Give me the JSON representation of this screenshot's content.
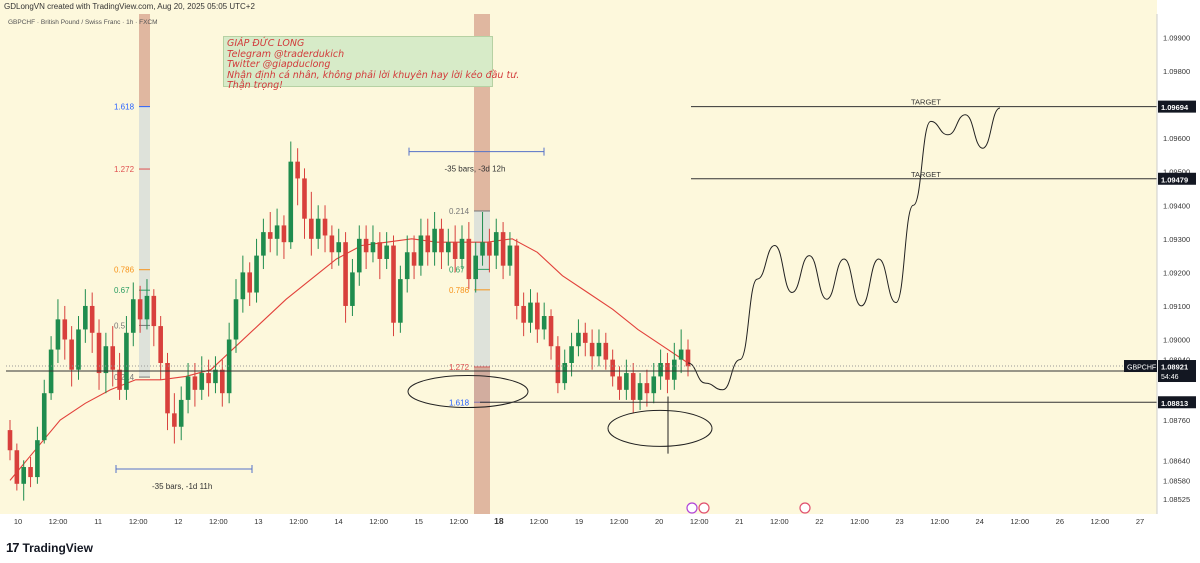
{
  "header": {
    "text": "GDLongVN created with TradingView.com, Aug 20, 2025 05:05 UTC+2"
  },
  "symbol_label": "GBPCHF · British Pound / Swiss Franc · 1h · FXCM",
  "note": {
    "lines": [
      "GIÁP ĐỨC LONG",
      "Telegram @traderdukich",
      "Twitter @giapduclong",
      "Nhận định cá nhân, không phải lời khuyên hay lời kéo đầu tư.",
      "Thận trọng!"
    ]
  },
  "footer": {
    "brand": "TradingView",
    "mark": "17"
  },
  "colors": {
    "background": "#fdf8dc",
    "up": "#1f8c4e",
    "down": "#d8403c",
    "ma": "#e2413b",
    "drawing": "#222222",
    "label_bg": "#131722",
    "fib_blue": "#2962ff",
    "fib_red": "#e05050",
    "fib_orange": "#f7931a",
    "fib_green": "#2a9d62"
  },
  "icons": {
    "event_1": "lightning-icon",
    "event_2": "flag-icon",
    "event_3": "flag-icon"
  },
  "chart_data": {
    "type": "candlestick",
    "title": "GBPCHF · British Pound / Swiss Franc · 1h · FXCM",
    "ylim": [
      1.0848,
      1.0997
    ],
    "y_ticks": [
      "1.09900",
      "1.09800",
      "1.09600",
      "1.09500",
      "1.09400",
      "1.09300",
      "1.09200",
      "1.09100",
      "1.09000",
      "1.08940",
      "1.08760",
      "1.08640",
      "1.08580",
      "1.08525"
    ],
    "x_ticks": [
      "10",
      "12:00",
      "11",
      "12:00",
      "12",
      "12:00",
      "13",
      "12:00",
      "14",
      "12:00",
      "15",
      "12:00",
      "18",
      "12:00",
      "19",
      "12:00",
      "20",
      "12:00",
      "21",
      "12:00",
      "22",
      "12:00",
      "23",
      "12:00",
      "24",
      "12:00",
      "26",
      "12:00",
      "27"
    ],
    "x_tick_bold": "18",
    "price_labels": [
      {
        "text": "1.09694",
        "value": 1.09694
      },
      {
        "text": "1.09479",
        "value": 1.09479
      },
      {
        "text": "1.08906",
        "value": 1.08906
      },
      {
        "text": "1.08813",
        "value": 1.08813
      }
    ],
    "current": {
      "symbol": "GBPCHF",
      "price": "1.08921",
      "countdown": "54:46",
      "value": 1.08921
    },
    "levels": [
      {
        "label": "TARGET",
        "value": 1.09694
      },
      {
        "label": "TARGET",
        "value": 1.09479
      },
      {
        "label": "",
        "value": 1.08813
      }
    ],
    "moving_average": [
      1.0858,
      1.0867,
      1.0876,
      1.0881,
      1.0885,
      1.0888,
      1.0888,
      1.0889,
      1.0891,
      1.0898,
      1.0905,
      1.0912,
      1.0918,
      1.0924,
      1.0928,
      1.0929,
      1.093,
      1.0929,
      1.0929,
      1.0929,
      1.093,
      1.0926,
      1.0919,
      1.0914,
      1.0909,
      1.0903,
      1.0898,
      1.0893
    ],
    "candles": [
      [
        1.0873,
        1.0867,
        1.0876,
        1.0864
      ],
      [
        1.0867,
        1.0857,
        1.0869,
        1.0855
      ],
      [
        1.0857,
        1.0862,
        1.0864,
        1.0852
      ],
      [
        1.0862,
        1.0859,
        1.0865,
        1.0856
      ],
      [
        1.0859,
        1.087,
        1.0874,
        1.0857
      ],
      [
        1.087,
        1.0884,
        1.0888,
        1.0869
      ],
      [
        1.0884,
        1.0897,
        1.0901,
        1.0882
      ],
      [
        1.0897,
        1.0906,
        1.0912,
        1.0893
      ],
      [
        1.0906,
        1.09,
        1.091,
        1.0894
      ],
      [
        1.09,
        1.0891,
        1.0904,
        1.0886
      ],
      [
        1.0891,
        1.0903,
        1.0907,
        1.0888
      ],
      [
        1.0903,
        1.091,
        1.0915,
        1.0899
      ],
      [
        1.091,
        1.0902,
        1.0914,
        1.0896
      ],
      [
        1.0902,
        1.089,
        1.0906,
        1.0885
      ],
      [
        1.089,
        1.0898,
        1.0902,
        1.0884
      ],
      [
        1.0898,
        1.0891,
        1.0904,
        1.0886
      ],
      [
        1.0891,
        1.0885,
        1.0896,
        1.0882
      ],
      [
        1.0885,
        1.0902,
        1.0907,
        1.0882
      ],
      [
        1.0902,
        1.0912,
        1.0917,
        1.0898
      ],
      [
        1.0912,
        1.0906,
        1.0916,
        1.0902
      ],
      [
        1.0906,
        1.0913,
        1.0918,
        1.0903
      ],
      [
        1.0913,
        1.0904,
        1.0915,
        1.0898
      ],
      [
        1.0904,
        1.0893,
        1.0907,
        1.0888
      ],
      [
        1.0893,
        1.0878,
        1.0896,
        1.0873
      ],
      [
        1.0878,
        1.0874,
        1.0884,
        1.0869
      ],
      [
        1.0874,
        1.0882,
        1.0886,
        1.087
      ],
      [
        1.0882,
        1.0889,
        1.0893,
        1.0878
      ],
      [
        1.0889,
        1.0885,
        1.0893,
        1.088
      ],
      [
        1.0885,
        1.089,
        1.0895,
        1.0882
      ],
      [
        1.089,
        1.0887,
        1.0894,
        1.0883
      ],
      [
        1.0887,
        1.0891,
        1.0895,
        1.0884
      ],
      [
        1.0891,
        1.0884,
        1.0894,
        1.088
      ],
      [
        1.0884,
        1.09,
        1.0905,
        1.0881
      ],
      [
        1.09,
        1.0912,
        1.0918,
        1.0896
      ],
      [
        1.0912,
        1.092,
        1.0925,
        1.0908
      ],
      [
        1.092,
        1.0914,
        1.0923,
        1.091
      ],
      [
        1.0914,
        1.0925,
        1.093,
        1.0911
      ],
      [
        1.0925,
        1.0932,
        1.0936,
        1.0921
      ],
      [
        1.0932,
        1.093,
        1.0938,
        1.0926
      ],
      [
        1.093,
        1.0934,
        1.0939,
        1.0925
      ],
      [
        1.0934,
        1.0929,
        1.0937,
        1.0924
      ],
      [
        1.0929,
        1.0953,
        1.0959,
        1.0927
      ],
      [
        1.0953,
        1.0948,
        1.0957,
        1.094
      ],
      [
        1.0948,
        1.0936,
        1.0951,
        1.093
      ],
      [
        1.0936,
        1.093,
        1.0944,
        1.0925
      ],
      [
        1.093,
        1.0936,
        1.094,
        1.0927
      ],
      [
        1.0936,
        1.0931,
        1.094,
        1.0926
      ],
      [
        1.0931,
        1.0926,
        1.0934,
        1.0921
      ],
      [
        1.0926,
        1.0929,
        1.0933,
        1.0922
      ],
      [
        1.0929,
        1.091,
        1.0932,
        1.0905
      ],
      [
        1.091,
        1.092,
        1.0924,
        1.0907
      ],
      [
        1.092,
        1.093,
        1.0934,
        1.0916
      ],
      [
        1.093,
        1.0926,
        1.0934,
        1.0921
      ],
      [
        1.0926,
        1.0929,
        1.0934,
        1.0923
      ],
      [
        1.0929,
        1.0924,
        1.0932,
        1.0918
      ],
      [
        1.0924,
        1.0928,
        1.0932,
        1.0921
      ],
      [
        1.0928,
        1.0905,
        1.0931,
        1.0901
      ],
      [
        1.0905,
        1.0918,
        1.0922,
        1.0902
      ],
      [
        1.0918,
        1.0926,
        1.0931,
        1.0914
      ],
      [
        1.0926,
        1.0922,
        1.0931,
        1.0918
      ],
      [
        1.0922,
        1.0931,
        1.0936,
        1.0919
      ],
      [
        1.0931,
        1.0926,
        1.0936,
        1.0922
      ],
      [
        1.0926,
        1.0933,
        1.0938,
        1.0922
      ],
      [
        1.0933,
        1.0926,
        1.0936,
        1.0921
      ],
      [
        1.0926,
        1.0929,
        1.0933,
        1.0922
      ],
      [
        1.0929,
        1.0924,
        1.0934,
        1.092
      ],
      [
        1.0924,
        1.093,
        1.0934,
        1.0921
      ],
      [
        1.093,
        1.0918,
        1.0935,
        1.0915
      ],
      [
        1.0918,
        1.0925,
        1.0929,
        1.0914
      ],
      [
        1.0925,
        1.0929,
        1.0938,
        1.0922
      ],
      [
        1.0929,
        1.0925,
        1.0933,
        1.092
      ],
      [
        1.0925,
        1.0932,
        1.0936,
        1.0921
      ],
      [
        1.0932,
        1.0922,
        1.0935,
        1.0918
      ],
      [
        1.0922,
        1.0928,
        1.0932,
        1.0919
      ],
      [
        1.0928,
        1.091,
        1.093,
        1.0906
      ],
      [
        1.091,
        1.0905,
        1.0914,
        1.0901
      ],
      [
        1.0905,
        1.0911,
        1.0915,
        1.0902
      ],
      [
        1.0911,
        1.0903,
        1.0914,
        1.0899
      ],
      [
        1.0903,
        1.0907,
        1.0911,
        1.09
      ],
      [
        1.0907,
        1.0898,
        1.0909,
        1.0894
      ],
      [
        1.0898,
        1.0887,
        1.0901,
        1.0884
      ],
      [
        1.0887,
        1.0893,
        1.0897,
        1.0885
      ],
      [
        1.0893,
        1.0898,
        1.0902,
        1.0889
      ],
      [
        1.0898,
        1.0902,
        1.0906,
        1.0895
      ],
      [
        1.0902,
        1.0899,
        1.0905,
        1.0895
      ],
      [
        1.0899,
        1.0895,
        1.0903,
        1.0891
      ],
      [
        1.0895,
        1.0899,
        1.0903,
        1.0892
      ],
      [
        1.0899,
        1.0894,
        1.0902,
        1.0891
      ],
      [
        1.0894,
        1.0889,
        1.0897,
        1.0886
      ],
      [
        1.0889,
        1.0885,
        1.0892,
        1.0882
      ],
      [
        1.0885,
        1.089,
        1.0894,
        1.0882
      ],
      [
        1.089,
        1.0882,
        1.0893,
        1.0878
      ],
      [
        1.0882,
        1.0887,
        1.089,
        1.0879
      ],
      [
        1.0887,
        1.0884,
        1.0891,
        1.088
      ],
      [
        1.0884,
        1.0889,
        1.0893,
        1.0881
      ],
      [
        1.0889,
        1.0893,
        1.0897,
        1.0885
      ],
      [
        1.0893,
        1.0888,
        1.0896,
        1.0884
      ],
      [
        1.0888,
        1.0894,
        1.0899,
        1.0885
      ],
      [
        1.0894,
        1.0897,
        1.0903,
        1.089
      ],
      [
        1.0897,
        1.0892,
        1.09,
        1.0889
      ]
    ],
    "projection": [
      [
        1.0893,
        1.0887
      ],
      [
        1.0887,
        1.0885
      ],
      [
        1.0885,
        1.0894
      ],
      [
        1.0894,
        1.0918
      ],
      [
        1.0918,
        1.0928
      ],
      [
        1.0928,
        1.0914
      ],
      [
        1.0914,
        1.0925
      ],
      [
        1.0925,
        1.0912
      ],
      [
        1.0912,
        1.0924
      ],
      [
        1.0924,
        1.091
      ],
      [
        1.091,
        1.0924
      ],
      [
        1.0924,
        1.0911
      ],
      [
        1.0911,
        1.094
      ],
      [
        1.094,
        1.0965
      ],
      [
        1.0965,
        1.0961
      ],
      [
        1.0961,
        1.0967
      ],
      [
        1.0967,
        1.0957
      ],
      [
        1.0957,
        1.0969
      ]
    ],
    "fib_left": {
      "levels": [
        {
          "label": "1.618",
          "value": 1.09694
        },
        {
          "label": "1.272",
          "value": 1.09508
        },
        {
          "label": "0.786",
          "value": 1.09208
        },
        {
          "label": "0.67",
          "value": 1.09147
        },
        {
          "label": "0.5",
          "value": 1.09042
        },
        {
          "label": "0.214",
          "value": 1.08888
        }
      ]
    },
    "fib_mid": {
      "levels": [
        {
          "label": "0.214",
          "value": 1.09383
        },
        {
          "label": "0.67",
          "value": 1.09209
        },
        {
          "label": "0.786",
          "value": 1.09148
        },
        {
          "label": "1.272",
          "value": 1.08918
        },
        {
          "label": "1.618",
          "value": 1.08813
        }
      ]
    },
    "measures": [
      {
        "text": "-35 bars, -3d 12h"
      },
      {
        "text": "-35 bars, -1d 11h"
      }
    ]
  }
}
